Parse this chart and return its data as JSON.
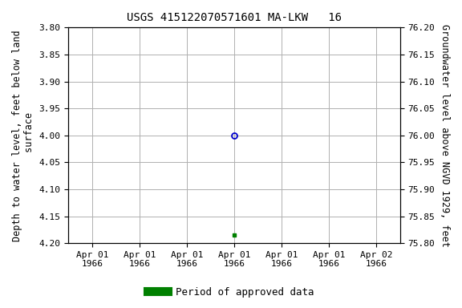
{
  "title": "USGS 415122070571601 MA-LKW   16",
  "ylabel_left": "Depth to water level, feet below land\n surface",
  "ylabel_right": "Groundwater level above NGVD 1929, feet",
  "ylim_left": [
    3.8,
    4.2
  ],
  "ylim_right": [
    75.8,
    76.2
  ],
  "yticks_left": [
    3.8,
    3.85,
    3.9,
    3.95,
    4.0,
    4.05,
    4.1,
    4.15,
    4.2
  ],
  "yticks_right": [
    75.8,
    75.85,
    75.9,
    75.95,
    76.0,
    76.05,
    76.1,
    76.15,
    76.2
  ],
  "point_blue_value": 4.0,
  "point_green_value": 4.185,
  "x_tick_labels": [
    "Apr 01\n1966",
    "Apr 01\n1966",
    "Apr 01\n1966",
    "Apr 01\n1966",
    "Apr 01\n1966",
    "Apr 01\n1966",
    "Apr 02\n1966"
  ],
  "legend_label": "Period of approved data",
  "legend_color": "#008000",
  "blue_color": "#0000cc",
  "background_color": "#ffffff",
  "grid_color": "#b0b0b0",
  "title_fontsize": 10,
  "label_fontsize": 8.5,
  "tick_fontsize": 8
}
